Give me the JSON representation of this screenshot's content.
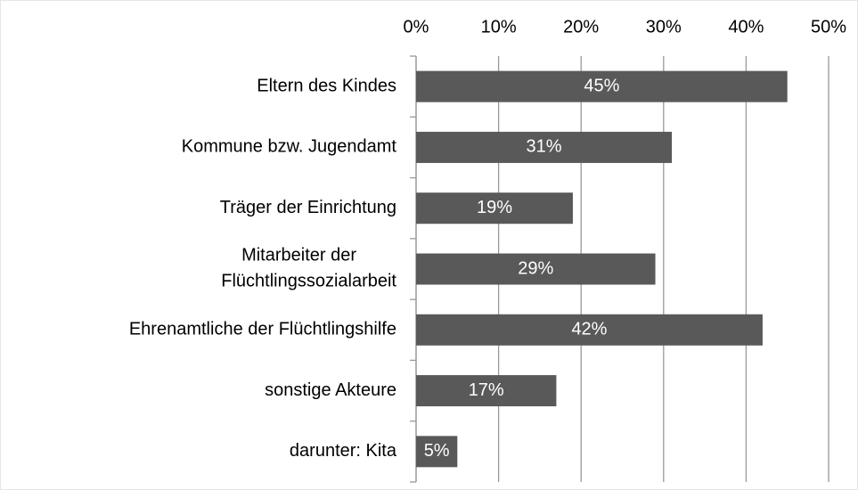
{
  "chart_data": {
    "type": "barh",
    "categories": [
      "Eltern des Kindes",
      "Kommune bzw. Jugendamt",
      "Träger der Einrichtung",
      "Mitarbeiter der\nFlüchtlingssozialarbeit",
      "Ehrenamtliche der Flüchtlingshilfe",
      "sonstige Akteure",
      "darunter: Kita"
    ],
    "values": [
      45,
      31,
      19,
      29,
      42,
      17,
      5
    ],
    "value_labels": [
      "45%",
      "31%",
      "19%",
      "29%",
      "42%",
      "17%",
      "5%"
    ],
    "color": "#595959",
    "xlim": [
      0,
      50
    ],
    "xticks": [
      {
        "value": 0,
        "label": "0%"
      },
      {
        "value": 10,
        "label": "10%"
      },
      {
        "value": 20,
        "label": "20%"
      },
      {
        "value": 30,
        "label": "30%"
      },
      {
        "value": 40,
        "label": "40%"
      },
      {
        "value": 50,
        "label": "50%"
      }
    ],
    "grid": true
  }
}
